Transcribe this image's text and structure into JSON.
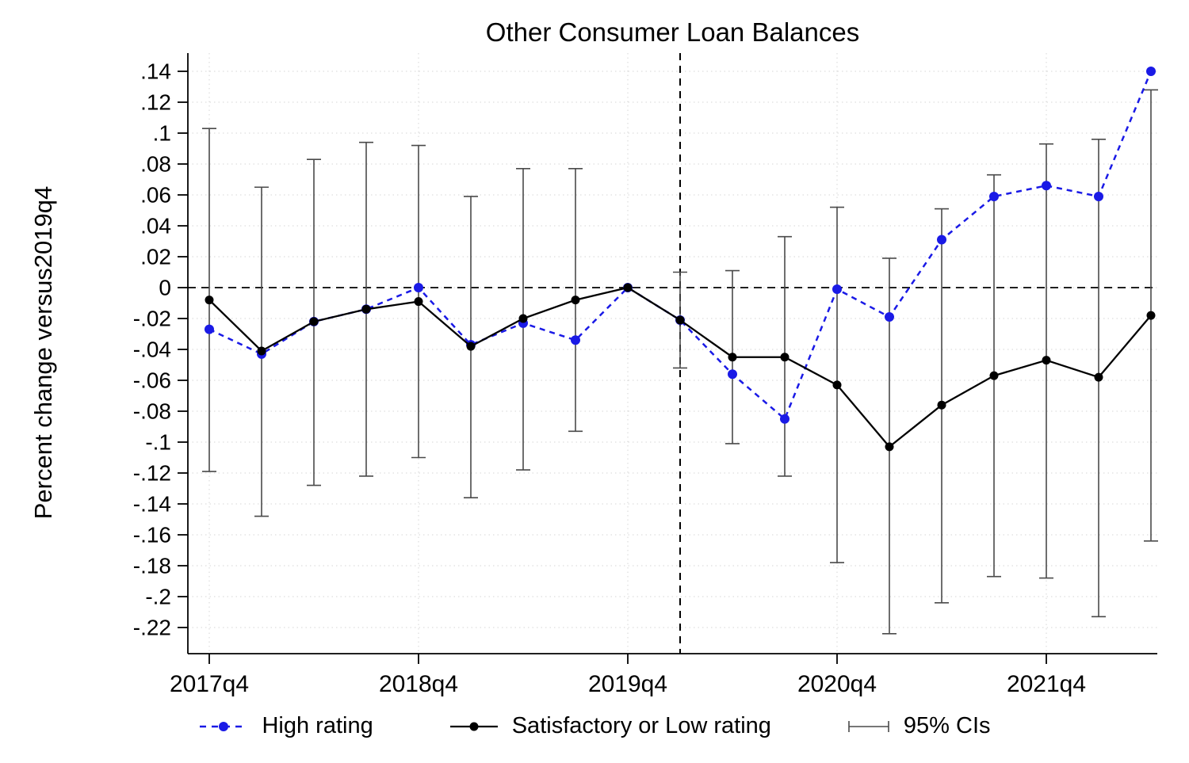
{
  "figure": {
    "title": "Other Consumer Loan Balances",
    "ylabel": "Percent change versus2019q4"
  },
  "legend": {
    "high": "High rating",
    "sat": "Satisfactory or Low rating",
    "ci": "95% CIs"
  },
  "chart_data": {
    "type": "line",
    "title": "Other Consumer Loan Balances",
    "xlabel": "",
    "ylabel": "Percent change versus2019q4",
    "x": [
      "2017q4",
      "2018q1",
      "2018q2",
      "2018q3",
      "2018q4",
      "2019q1",
      "2019q2",
      "2019q3",
      "2019q4",
      "2020q1",
      "2020q2",
      "2020q3",
      "2020q4",
      "2021q1",
      "2021q2",
      "2021q3",
      "2021q4",
      "2022q1",
      "2022q2"
    ],
    "x_tick_indices": [
      0,
      4,
      8,
      12,
      16
    ],
    "x_tick_labels": [
      "2017q4",
      "2018q4",
      "2019q4",
      "2020q4",
      "2021q4"
    ],
    "ytick_values": [
      0.14,
      0.12,
      0.1,
      0.08,
      0.06,
      0.04,
      0.02,
      0,
      -0.02,
      -0.04,
      -0.06,
      -0.08,
      -0.1,
      -0.12,
      -0.14,
      -0.16,
      -0.18,
      -0.2,
      -0.22
    ],
    "ytick_labels": [
      ".14",
      ".12",
      ".1",
      ".08",
      ".06",
      ".04",
      ".02",
      "0",
      "-.02",
      "-.04",
      "-.06",
      "-.08",
      "-.1",
      "-.12",
      "-.14",
      "-.16",
      "-.18",
      "-.2",
      "-.22"
    ],
    "ylim": [
      -0.237,
      0.152
    ],
    "grid": true,
    "legend_position": "bottom",
    "reference_lines": {
      "horizontal_y": 0,
      "vertical_x": "2020q1"
    },
    "series": [
      {
        "name": "High rating",
        "color": "#1a1ae6",
        "line_style": "dashed",
        "marker": "circle",
        "values": [
          -0.027,
          -0.043,
          -0.022,
          -0.014,
          0,
          -0.037,
          -0.023,
          -0.034,
          0,
          -0.021,
          -0.056,
          -0.085,
          -0.001,
          -0.019,
          0.031,
          0.059,
          0.066,
          0.059,
          0.14
        ]
      },
      {
        "name": "Satisfactory or Low rating",
        "color": "#000000",
        "line_style": "solid",
        "marker": "circle",
        "values": [
          -0.008,
          -0.041,
          -0.022,
          -0.014,
          -0.009,
          -0.038,
          -0.02,
          -0.008,
          0,
          -0.021,
          -0.045,
          -0.045,
          -0.063,
          -0.103,
          -0.076,
          -0.057,
          -0.047,
          -0.058,
          -0.018
        ]
      }
    ],
    "ci": {
      "name": "95% CIs",
      "on_series": "Satisfactory or Low rating",
      "color": "#4a4a4a",
      "upper": [
        0.103,
        0.065,
        0.083,
        0.094,
        0.092,
        0.059,
        0.077,
        0.077,
        null,
        0.01,
        0.011,
        0.033,
        0.052,
        0.019,
        0.051,
        0.073,
        0.093,
        0.096,
        0.128
      ],
      "lower": [
        -0.119,
        -0.148,
        -0.128,
        -0.122,
        -0.11,
        -0.136,
        -0.118,
        -0.093,
        null,
        -0.052,
        -0.101,
        -0.122,
        -0.178,
        -0.224,
        -0.204,
        -0.187,
        -0.188,
        -0.213,
        -0.164
      ]
    }
  }
}
